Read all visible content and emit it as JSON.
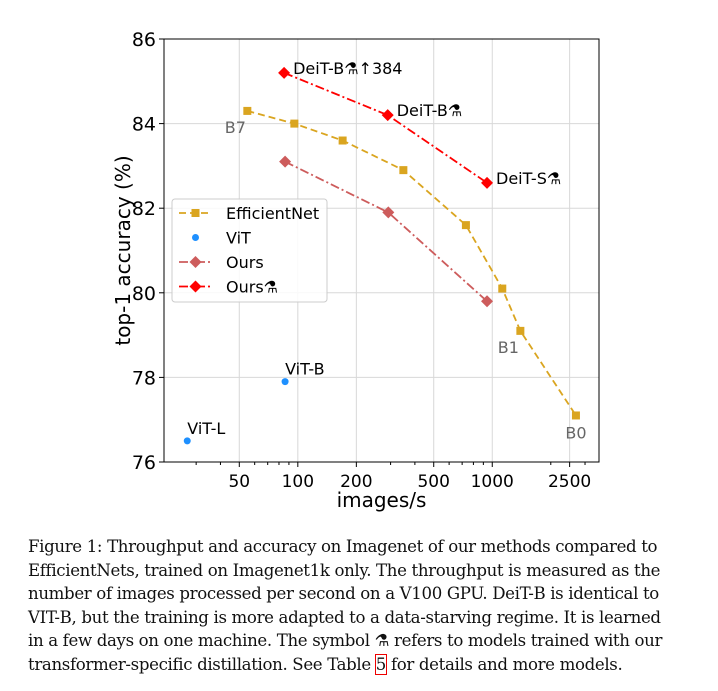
{
  "chart_data": {
    "type": "line",
    "xlabel": "images/s",
    "ylabel": "top-1 accuracy (%)",
    "xscale": "log",
    "xlim": [
      20.5,
      3540
    ],
    "ylim": [
      76,
      86
    ],
    "xticks": [
      50,
      100,
      200,
      500,
      1000,
      2500
    ],
    "yticks": [
      76,
      78,
      80,
      82,
      84,
      86
    ],
    "grid": true,
    "legend": "center-left",
    "series": [
      {
        "name": "EfficientNet",
        "color": "#DAA520",
        "marker": "square",
        "line": "dashed",
        "x": [
          55,
          96,
          170,
          349,
          732,
          1126,
          1395,
          2694
        ],
        "y": [
          84.3,
          84.0,
          83.6,
          82.9,
          81.6,
          80.1,
          79.1,
          77.1
        ]
      },
      {
        "name": "ViT",
        "color": "#1E90FF",
        "marker": "circle",
        "line": "none",
        "x": [
          27,
          86
        ],
        "y": [
          76.5,
          77.9
        ]
      },
      {
        "name": "Ours",
        "color": "#CD5C5C",
        "marker": "diamond",
        "line": "dashdot",
        "x": [
          86,
          292,
          940
        ],
        "y": [
          83.1,
          81.9,
          79.8
        ]
      },
      {
        "name": "Ours⚗",
        "color": "#FF0000",
        "marker": "diamond",
        "line": "dashdot",
        "x": [
          85,
          290,
          940
        ],
        "y": [
          85.2,
          84.2,
          82.6
        ]
      }
    ],
    "annotations": [
      {
        "text": "DeiT-B⚗↑384",
        "x": 85,
        "y": 85.2,
        "color": "#000",
        "pos": "right"
      },
      {
        "text": "DeiT-B⚗",
        "x": 290,
        "y": 84.2,
        "color": "#000",
        "pos": "right"
      },
      {
        "text": "DeiT-S⚗",
        "x": 940,
        "y": 82.6,
        "color": "#000",
        "pos": "right"
      },
      {
        "text": "B7",
        "x": 55,
        "y": 84.3,
        "color": "#666",
        "pos": "below-left"
      },
      {
        "text": "B1",
        "x": 1395,
        "y": 79.1,
        "color": "#666",
        "pos": "below-left"
      },
      {
        "text": "B0",
        "x": 2694,
        "y": 77.1,
        "color": "#666",
        "pos": "below"
      },
      {
        "text": "ViT-B",
        "x": 86,
        "y": 77.9,
        "color": "#000",
        "pos": "above"
      },
      {
        "text": "ViT-L",
        "x": 27,
        "y": 76.5,
        "color": "#000",
        "pos": "above"
      }
    ]
  },
  "caption": {
    "lines": [
      "Figure 1: Throughput and accuracy on Imagenet of our methods compared to",
      "EfficientNets, trained on Imagenet1k only. The throughput is measured as the",
      "number of images processed per second on a V100 GPU. DeiT-B is identical to",
      "VIT-B, but the training is more adapted to a data-starving regime. It is learned",
      "in a few days on one machine. The symbol ⚗ refers to models trained with our"
    ],
    "last_before": "transformer-specific distillation. See Table ",
    "table_ref": "5",
    "last_after": " for details and more models."
  }
}
